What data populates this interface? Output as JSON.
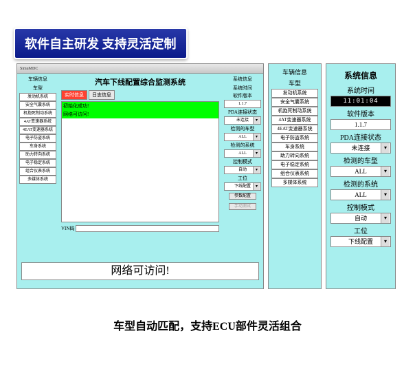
{
  "badge": "软件自主研发 支持灵活定制",
  "caption": "车型自动匹配，支持ECU部件灵活组合",
  "main": {
    "titlebar": "SimuMDC",
    "title": "汽车下线配置综合监测系统",
    "left_header": "车辆信息",
    "left_sub": "车型",
    "left_buttons": [
      "发动机系统",
      "安全气囊系统",
      "机抱死制动系统",
      "4AT变速器系统",
      "4EAT变速器系统",
      "电子防盗系统",
      "车身系统",
      "助力转向系统",
      "电子稳定系统",
      "组合仪表系统",
      "多媒体系统"
    ],
    "tabs": [
      "实时信息",
      "日志信息"
    ],
    "log_lines": [
      "初始化成功!",
      "网络可访问!"
    ],
    "vin_label": "VIN码",
    "right_header": "系统信息",
    "right_items": [
      {
        "label": "系统时间",
        "type": "label"
      },
      {
        "label": "软件版本",
        "type": "label"
      },
      {
        "value": "1.1.7",
        "type": "val"
      },
      {
        "label": "PDA连接状态",
        "type": "label"
      },
      {
        "value": "未连接",
        "type": "sel"
      },
      {
        "label": "检测的车型",
        "type": "label"
      },
      {
        "value": "ALL",
        "type": "sel"
      },
      {
        "label": "检测的系统",
        "type": "label"
      },
      {
        "value": "ALL",
        "type": "sel"
      },
      {
        "label": "控制模式",
        "type": "label"
      },
      {
        "value": "自动",
        "type": "sel"
      },
      {
        "label": "工位",
        "type": "label"
      },
      {
        "value": "下线配置",
        "type": "sel"
      }
    ],
    "action_btn1": "参数配置",
    "action_btn2": "手动测试",
    "footer": "网络可访问!"
  },
  "mid": {
    "header": "车辆信息",
    "sub": "车型",
    "buttons": [
      "发动机系统",
      "安全气囊系统",
      "机抱死制动系统",
      "4AT变速器系统",
      "4EAT变速器系统",
      "电子防盗系统",
      "车身系统",
      "助力转向系统",
      "电子稳定系统",
      "组合仪表系统",
      "多媒体系统"
    ]
  },
  "right": {
    "title": "系统信息",
    "rows": [
      {
        "label": "系统时间",
        "value": "11:01:04",
        "cls": "time"
      },
      {
        "label": "软件版本",
        "value": "1.1.7",
        "cls": ""
      },
      {
        "label": "PDA连接状态",
        "value": "未连接",
        "cls": "sel"
      },
      {
        "label": "检测的车型",
        "value": "ALL",
        "cls": "sel"
      },
      {
        "label": "检测的系统",
        "value": "ALL",
        "cls": "sel"
      },
      {
        "label": "控制模式",
        "value": "自动",
        "cls": "sel"
      },
      {
        "label": "工位",
        "value": "下线配置",
        "cls": "sel"
      }
    ]
  }
}
